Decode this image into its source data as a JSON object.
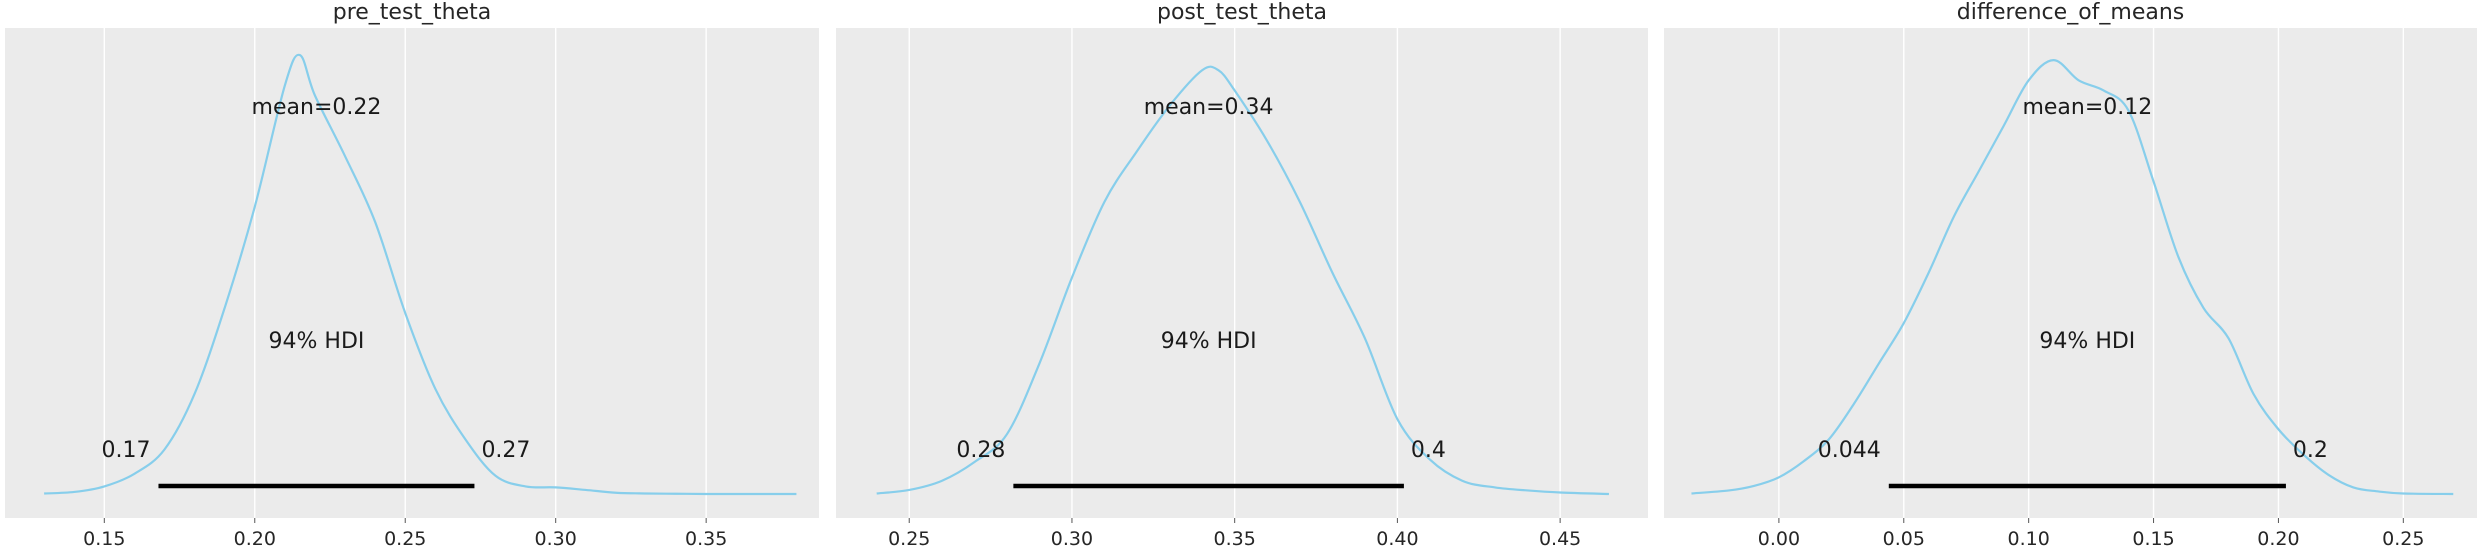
{
  "chart_data": [
    {
      "type": "line",
      "title": "pre_test_theta",
      "xlim": [
        0.117,
        0.3875
      ],
      "xticks": [
        0.15,
        0.2,
        0.25,
        0.3,
        0.35
      ],
      "xtick_labels": [
        "0.15",
        "0.20",
        "0.25",
        "0.30",
        "0.35"
      ],
      "density": {
        "x": [
          0.13,
          0.14,
          0.15,
          0.16,
          0.17,
          0.18,
          0.19,
          0.2,
          0.21,
          0.215,
          0.22,
          0.23,
          0.24,
          0.25,
          0.26,
          0.27,
          0.28,
          0.29,
          0.3,
          0.31,
          0.32,
          0.33,
          0.34,
          0.35,
          0.36,
          0.37,
          0.38
        ],
        "y": [
          0.3,
          0.6,
          1.7,
          4.2,
          9,
          20,
          37,
          57,
          81,
          87,
          79,
          67,
          54,
          36,
          21,
          11,
          3.8,
          1.7,
          1.5,
          1.0,
          0.45,
          0.3,
          0.25,
          0.2,
          0.2,
          0.2,
          0.2
        ]
      },
      "mean_label": "mean=0.22",
      "hdi_label": "94% HDI",
      "hdi": [
        0.168,
        0.273
      ],
      "hdi_low_label": "0.17",
      "hdi_high_label": "0.27"
    },
    {
      "type": "line",
      "title": "post_test_theta",
      "xlim": [
        0.2275,
        0.477
      ],
      "xticks": [
        0.25,
        0.3,
        0.35,
        0.4,
        0.45
      ],
      "xtick_labels": [
        "0.25",
        "0.30",
        "0.35",
        "0.40",
        "0.45"
      ],
      "density": {
        "x": [
          0.24,
          0.25,
          0.26,
          0.27,
          0.28,
          0.29,
          0.3,
          0.31,
          0.32,
          0.33,
          0.34,
          0.345,
          0.35,
          0.36,
          0.37,
          0.38,
          0.39,
          0.4,
          0.41,
          0.42,
          0.43,
          0.44,
          0.45,
          0.465
        ],
        "y": [
          0.3,
          1.0,
          2.8,
          6.5,
          12,
          26,
          43,
          58,
          68,
          77,
          84,
          84,
          80,
          70,
          58,
          44,
          31,
          15,
          7,
          2.8,
          1.5,
          0.9,
          0.5,
          0.2
        ]
      },
      "mean_label": "mean=0.34",
      "hdi_label": "94% HDI",
      "hdi": [
        0.282,
        0.402
      ],
      "hdi_low_label": "0.28",
      "hdi_high_label": "0.4"
    },
    {
      "type": "line",
      "title": "difference_of_means",
      "xlim": [
        -0.046,
        0.2795
      ],
      "xticks": [
        0.0,
        0.05,
        0.1,
        0.15,
        0.2,
        0.25
      ],
      "xtick_labels": [
        "0.00",
        "0.05",
        "0.10",
        "0.15",
        "0.20",
        "0.25"
      ],
      "density": {
        "x": [
          -0.035,
          -0.02,
          -0.01,
          0.0,
          0.01,
          0.02,
          0.03,
          0.04,
          0.05,
          0.06,
          0.07,
          0.08,
          0.09,
          0.1,
          0.11,
          0.12,
          0.13,
          0.14,
          0.15,
          0.16,
          0.17,
          0.18,
          0.19,
          0.2,
          0.21,
          0.22,
          0.23,
          0.24,
          0.25,
          0.27
        ],
        "y": [
          0.3,
          0.9,
          1.8,
          3.5,
          6.7,
          11,
          18,
          26,
          34,
          44,
          55,
          64,
          73,
          82,
          86,
          82,
          80,
          76,
          62,
          47,
          37,
          31,
          20,
          13,
          8,
          4,
          1.5,
          0.7,
          0.3,
          0.2
        ]
      },
      "mean_label": "mean=0.12",
      "hdi_label": "94% HDI",
      "hdi": [
        0.044,
        0.203
      ],
      "hdi_low_label": "0.044",
      "hdi_high_label": "0.2"
    }
  ],
  "colors": {
    "kde": "#87ceeb",
    "hdi_bar": "#000000",
    "plot_background": "#ebebeb",
    "grid": "#ffffff"
  },
  "grid": "on (vertical)",
  "y_axis": "hidden"
}
